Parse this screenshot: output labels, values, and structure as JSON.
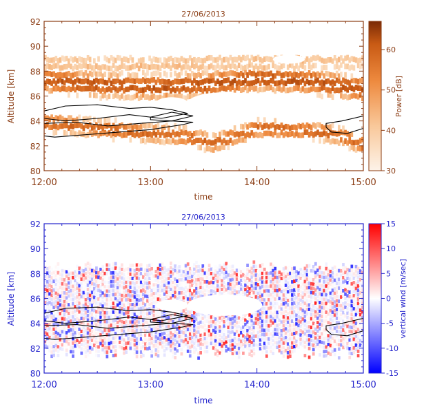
{
  "chart_data": [
    {
      "type": "heatmap",
      "title": "27/06/2013",
      "xlabel": "time",
      "ylabel": "Altitude  [km]",
      "x_ticks": [
        "12:00",
        "13:00",
        "14:00",
        "15:00"
      ],
      "xlim": [
        12.0,
        15.0
      ],
      "ylim": [
        80,
        92
      ],
      "y_ticks": [
        "80",
        "82",
        "84",
        "86",
        "88",
        "90",
        "92"
      ],
      "colorbar": {
        "label": "Power [dB]",
        "ticks": [
          "30",
          "40",
          "50",
          "60"
        ],
        "range": [
          30,
          67
        ],
        "colors": [
          "#fdf3e9",
          "#f9c89a",
          "#ee8a3f",
          "#c85a14",
          "#7a2a06"
        ]
      },
      "axis_color": "#8a3b12",
      "layers": [
        {
          "name": "upper-band",
          "x": [
            12.0,
            12.5,
            13.0,
            13.5,
            14.0,
            14.5,
            15.0
          ],
          "y": [
            87.3,
            86.9,
            86.7,
            86.9,
            87.4,
            87.2,
            86.5
          ],
          "width_km": 1.4,
          "dB": 58
        },
        {
          "name": "lower-band",
          "x": [
            12.0,
            12.5,
            13.0,
            13.3,
            13.6,
            14.0,
            14.5,
            14.8,
            15.0
          ],
          "y": [
            83.9,
            83.4,
            83.0,
            82.8,
            82.2,
            83.4,
            83.2,
            82.8,
            82.0
          ],
          "width_km": 1.1,
          "dB": 54
        },
        {
          "name": "top-haze",
          "x": [
            12.0,
            13.0,
            14.0,
            15.0
          ],
          "y": [
            88.6,
            88.4,
            88.8,
            88.9
          ],
          "width_km": 1.5,
          "dB": 40
        }
      ],
      "gaps": [
        {
          "x": [
            13.35,
            14.05
          ],
          "y": [
            84.6,
            86.3
          ]
        },
        {
          "x": [
            13.05,
            13.35
          ],
          "y": [
            85.0,
            85.9
          ]
        },
        {
          "x": [
            14.15,
            14.45
          ],
          "y": [
            88.6,
            89.3
          ]
        }
      ],
      "contours": [
        {
          "x": [
            12.0,
            12.2,
            12.5,
            12.8,
            13.0,
            13.2,
            13.35,
            13.1,
            12.8,
            12.5,
            12.2,
            12.0
          ],
          "y": [
            84.8,
            85.2,
            85.3,
            85.0,
            85.1,
            84.9,
            84.6,
            84.2,
            84.5,
            84.2,
            84.0,
            84.2
          ]
        },
        {
          "x": [
            12.0,
            12.3,
            12.6,
            12.9,
            13.2,
            13.4,
            13.3,
            13.0,
            12.7,
            12.4,
            12.1,
            12.0
          ],
          "y": [
            83.8,
            83.9,
            83.6,
            83.8,
            84.0,
            83.9,
            83.7,
            83.3,
            83.1,
            82.9,
            82.7,
            82.8
          ]
        },
        {
          "x": [
            13.0,
            13.2,
            13.4,
            13.2,
            13.0
          ],
          "y": [
            84.3,
            84.7,
            84.4,
            84.0,
            84.1
          ]
        },
        {
          "x": [
            14.65,
            14.8,
            15.0,
            15.0,
            14.85,
            14.7,
            14.65
          ],
          "y": [
            83.8,
            84.0,
            84.4,
            83.4,
            83.0,
            83.1,
            83.5
          ]
        }
      ]
    },
    {
      "type": "heatmap",
      "title": "27/06/2013",
      "xlabel": "time",
      "ylabel": "Altitude  [km]",
      "x_ticks": [
        "12:00",
        "13:00",
        "14:00",
        "15:00"
      ],
      "xlim": [
        12.0,
        15.0
      ],
      "ylim": [
        80,
        92
      ],
      "y_ticks": [
        "80",
        "82",
        "84",
        "86",
        "88",
        "90",
        "92"
      ],
      "colorbar": {
        "label": "vertical wind [m/sec]",
        "ticks": [
          "-15",
          "-10",
          "-5",
          "0",
          "5",
          "10",
          "15"
        ],
        "range": [
          -15,
          15
        ],
        "colors": [
          "#0000ff",
          "#7f7fff",
          "#ffffff",
          "#ff7f7f",
          "#ff0000"
        ]
      },
      "axis_color": "#2222cc",
      "data_extent_km": [
        81.2,
        89.0
      ],
      "gaps": [
        {
          "x": [
            13.35,
            14.05
          ],
          "y": [
            84.6,
            86.3
          ]
        },
        {
          "x": [
            13.05,
            13.35
          ],
          "y": [
            85.0,
            85.9
          ]
        },
        {
          "x": [
            14.15,
            14.45
          ],
          "y": [
            88.6,
            89.3
          ]
        }
      ],
      "contours": [
        {
          "x": [
            12.0,
            12.2,
            12.5,
            12.8,
            13.0,
            13.2,
            13.35,
            13.1,
            12.8,
            12.5,
            12.2,
            12.0
          ],
          "y": [
            84.8,
            85.2,
            85.3,
            85.0,
            85.1,
            84.9,
            84.6,
            84.2,
            84.5,
            84.2,
            84.0,
            84.2
          ]
        },
        {
          "x": [
            12.0,
            12.3,
            12.6,
            12.9,
            13.2,
            13.4,
            13.3,
            13.0,
            12.7,
            12.4,
            12.1,
            12.0
          ],
          "y": [
            83.8,
            83.9,
            83.6,
            83.8,
            84.0,
            83.9,
            83.7,
            83.3,
            83.1,
            82.9,
            82.7,
            82.8
          ]
        },
        {
          "x": [
            13.0,
            13.2,
            13.4,
            13.2,
            13.0
          ],
          "y": [
            84.3,
            84.7,
            84.4,
            84.0,
            84.1
          ]
        },
        {
          "x": [
            14.65,
            14.8,
            15.0,
            15.0,
            14.85,
            14.7,
            14.65
          ],
          "y": [
            83.8,
            84.0,
            84.4,
            83.4,
            83.0,
            83.1,
            83.5
          ]
        }
      ]
    }
  ]
}
